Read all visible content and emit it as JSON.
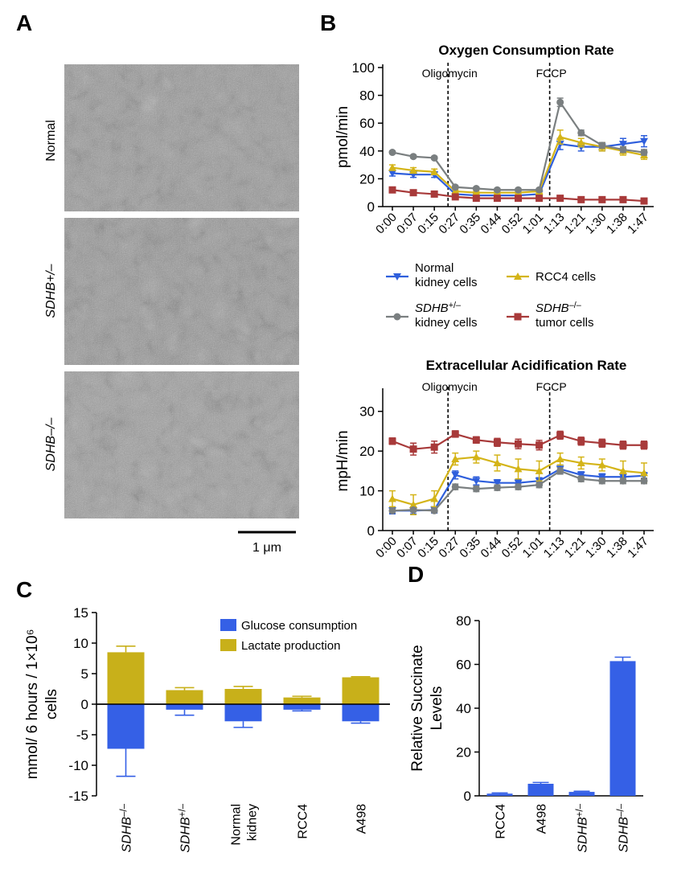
{
  "panels": {
    "A": "A",
    "B": "B",
    "C": "C",
    "D": "D"
  },
  "micrographs": {
    "labels": [
      "Normal",
      "SDHB+/–",
      "SDHB–/–"
    ],
    "scale_bar": "1 μm"
  },
  "colors": {
    "normal": "#2f5fdc",
    "sdhb_het": "#7a7f80",
    "rcc4": "#d4b418",
    "sdhb_null": "#a83a3a",
    "glucose": "#3560e6",
    "lactate": "#c8b01a"
  },
  "chart_data": [
    {
      "id": "ocr",
      "type": "line",
      "title": "Oxygen Consumption Rate",
      "xlabel": "",
      "ylabel": "pmol/min",
      "ylim": [
        0,
        100
      ],
      "yticks": [
        0,
        20,
        40,
        60,
        80,
        100
      ],
      "x": [
        "0:00",
        "0:07",
        "0:15",
        "0:27",
        "0:35",
        "0:44",
        "0:52",
        "1:01",
        "1:13",
        "1:21",
        "1:30",
        "1:38",
        "1:47"
      ],
      "annotations": [
        {
          "label": "Oligomycin",
          "after_index": 2
        },
        {
          "label": "FCCP",
          "after_index": 7
        }
      ],
      "series": [
        {
          "name": "Normal kidney cells",
          "values": [
            24,
            23,
            23,
            9,
            8,
            8,
            8,
            9,
            45,
            43,
            43,
            45,
            47
          ],
          "errors": [
            2,
            2,
            2,
            1,
            1,
            1,
            1,
            1,
            4,
            3,
            3,
            4,
            4
          ]
        },
        {
          "name": "RCC4 cells",
          "values": [
            28,
            26,
            25,
            11,
            10,
            10,
            10,
            11,
            50,
            46,
            43,
            40,
            37
          ],
          "errors": [
            2,
            2,
            2,
            1,
            1,
            1,
            1,
            1,
            5,
            3,
            3,
            3,
            3
          ]
        },
        {
          "name": "SDHB+/– kidney cells",
          "values": [
            39,
            36,
            35,
            14,
            13,
            12,
            12,
            12,
            75,
            53,
            44,
            41,
            39
          ],
          "errors": [
            1,
            1,
            1,
            1,
            1,
            1,
            1,
            1,
            3,
            2,
            2,
            2,
            2
          ]
        },
        {
          "name": "SDHB–/– tumor cells",
          "values": [
            12,
            10,
            9,
            7,
            6,
            6,
            6,
            6,
            6,
            5,
            5,
            5,
            4
          ],
          "errors": [
            1,
            1,
            1,
            1,
            1,
            1,
            1,
            1,
            1,
            1,
            1,
            1,
            1
          ]
        }
      ],
      "legend": [
        {
          "key": "normal",
          "line1": "Normal",
          "line2": "kidney cells"
        },
        {
          "key": "rcc4",
          "line1": "RCC4 cells",
          "line2": ""
        },
        {
          "key": "sdhb_het",
          "line1": "SDHB+/–",
          "line2": "kidney cells"
        },
        {
          "key": "sdhb_null",
          "line1": "SDHB–/–",
          "line2": "tumor cells"
        }
      ]
    },
    {
      "id": "ecar",
      "type": "line",
      "title": "Extracellular Acidification Rate",
      "xlabel": "",
      "ylabel": "mpH/min",
      "ylim": [
        0,
        35
      ],
      "yticks": [
        0,
        10,
        20,
        30
      ],
      "x": [
        "0:00",
        "0:07",
        "0:15",
        "0:27",
        "0:35",
        "0:44",
        "0:52",
        "1:01",
        "1:13",
        "1:21",
        "1:30",
        "1:38",
        "1:47"
      ],
      "annotations": [
        {
          "label": "Oligomycin",
          "after_index": 2
        },
        {
          "label": "FCCP",
          "after_index": 7
        }
      ],
      "series": [
        {
          "name": "Normal kidney cells",
          "values": [
            5,
            5,
            5.2,
            14,
            12.5,
            12,
            12,
            12.5,
            15.5,
            14,
            13.5,
            13.5,
            13.8
          ],
          "errors": [
            0.8,
            0.8,
            0.8,
            1,
            1,
            0.8,
            0.8,
            0.8,
            1,
            0.8,
            0.8,
            0.8,
            0.8
          ]
        },
        {
          "name": "RCC4 cells",
          "values": [
            8,
            6.5,
            8,
            18,
            18.5,
            17,
            15.5,
            15,
            18,
            17,
            16.5,
            15,
            14.5
          ],
          "errors": [
            2,
            2.5,
            2,
            1.5,
            1.5,
            2,
            2.5,
            2.5,
            1.5,
            1.5,
            1.5,
            2.5,
            2.5
          ]
        },
        {
          "name": "SDHB+/– kidney cells",
          "values": [
            5,
            5.2,
            5,
            11,
            10.5,
            10.8,
            11,
            11.5,
            15,
            13,
            12.5,
            12.5,
            12.5
          ],
          "errors": [
            0.5,
            0.5,
            0.5,
            0.7,
            0.7,
            0.7,
            0.7,
            0.7,
            0.8,
            0.7,
            0.7,
            0.7,
            0.7
          ]
        },
        {
          "name": "SDHB–/– tumor cells",
          "values": [
            22.5,
            20.5,
            21,
            24.3,
            22.8,
            22.2,
            21.8,
            21.5,
            24,
            22.5,
            22,
            21.5,
            21.5
          ],
          "errors": [
            0.8,
            1.5,
            1.5,
            0.8,
            0.8,
            1,
            1.2,
            1.2,
            1,
            1,
            1,
            1,
            1
          ]
        }
      ]
    },
    {
      "id": "glycolysis",
      "type": "bar",
      "title": "",
      "xlabel": "",
      "ylabel": "mmol/ 6 hours / 1×10⁶ cells",
      "ylabel_line1": "mmol/ 6 hours / 1×10⁶",
      "ylabel_line2": "cells",
      "ylim": [
        -15,
        15
      ],
      "yticks": [
        -15,
        -10,
        -5,
        0,
        5,
        10,
        15
      ],
      "categories": [
        "SDHB–/–",
        "SDHB+/–",
        "Normal kidney",
        "RCC4",
        "A498"
      ],
      "category_lines": [
        [
          "SDHB–/–"
        ],
        [
          "SDHB+/–"
        ],
        [
          "Normal",
          "kidney"
        ],
        [
          "RCC4"
        ],
        [
          "A498"
        ]
      ],
      "category_italic": [
        true,
        true,
        false,
        false,
        false
      ],
      "series": [
        {
          "name": "Glucose consumption",
          "values": [
            -7.3,
            -0.9,
            -2.8,
            -0.9,
            -2.8
          ],
          "errors": [
            4.5,
            0.9,
            1.0,
            0.2,
            0.3
          ]
        },
        {
          "name": "Lactate production",
          "values": [
            8.5,
            2.3,
            2.5,
            1.1,
            4.4
          ],
          "errors": [
            1.0,
            0.4,
            0.4,
            0.2,
            0.1
          ]
        }
      ]
    },
    {
      "id": "succinate",
      "type": "bar",
      "title": "",
      "xlabel": "",
      "ylabel": "Relative Succinate Levels",
      "ylabel_line1": "Relative Succinate",
      "ylabel_line2": "Levels",
      "ylim": [
        0,
        80
      ],
      "yticks": [
        0,
        20,
        40,
        60,
        80
      ],
      "categories": [
        "RCC4",
        "A498",
        "SDHB+/–",
        "SDHB–/–"
      ],
      "category_italic": [
        false,
        false,
        true,
        true
      ],
      "values": [
        1,
        5.5,
        1.8,
        61.5
      ],
      "errors": [
        0.3,
        0.6,
        0.3,
        1.8
      ]
    }
  ]
}
